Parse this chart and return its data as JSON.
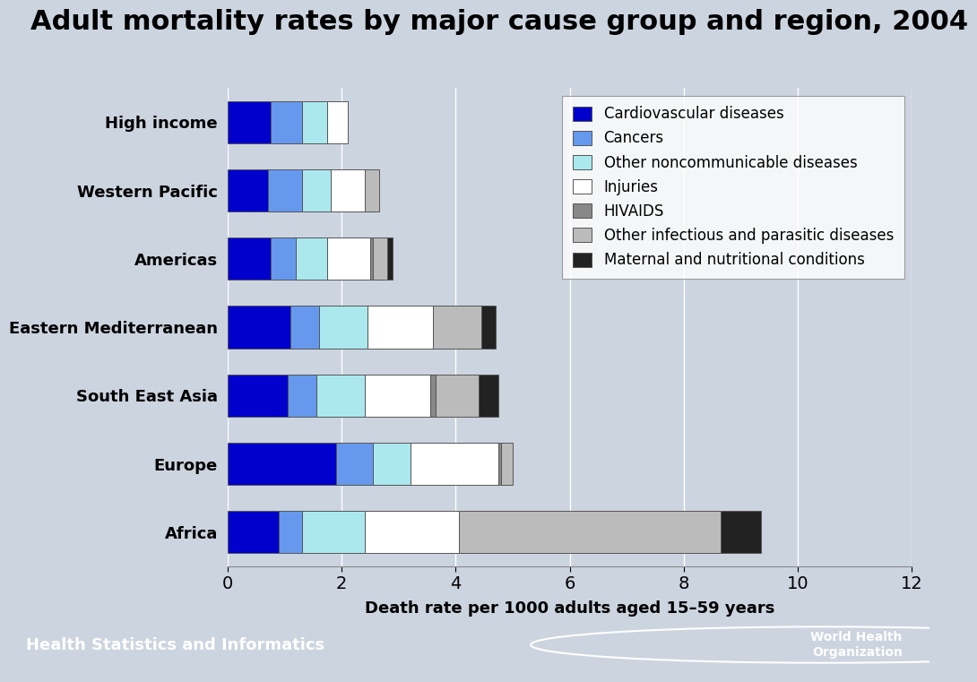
{
  "title": "Adult mortality rates by major cause group and region, 2004",
  "xlabel": "Death rate per 1000 adults aged 15–59 years",
  "regions": [
    "High income",
    "Western Pacific",
    "Americas",
    "Eastern Mediterranean",
    "South East Asia",
    "Europe",
    "Africa"
  ],
  "categories": [
    "Cardiovascular diseases",
    "Cancers",
    "Other noncommunicable diseases",
    "Injuries",
    "HIVAIDS",
    "Other infectious and parasitic diseases",
    "Maternal and nutritional conditions"
  ],
  "colors": [
    "#0000cc",
    "#6699ee",
    "#aae8ee",
    "#ffffff",
    "#888888",
    "#bbbbbb",
    "#222222"
  ],
  "bar_edgecolor": "#555555",
  "data": {
    "High income": [
      0.75,
      0.55,
      0.45,
      0.35,
      0.0,
      0.0,
      0.0
    ],
    "Western Pacific": [
      0.7,
      0.6,
      0.5,
      0.6,
      0.0,
      0.25,
      0.0
    ],
    "Americas": [
      0.75,
      0.45,
      0.55,
      0.75,
      0.05,
      0.25,
      0.1
    ],
    "Eastern Mediterranean": [
      1.1,
      0.5,
      0.85,
      1.15,
      0.0,
      0.85,
      0.25
    ],
    "South East Asia": [
      1.05,
      0.5,
      0.85,
      1.15,
      0.1,
      0.75,
      0.35
    ],
    "Europe": [
      1.9,
      0.65,
      0.65,
      1.55,
      0.05,
      0.2,
      0.0
    ],
    "Africa": [
      0.9,
      0.4,
      1.1,
      1.65,
      0.0,
      4.6,
      0.7
    ]
  },
  "xlim": [
    0,
    12
  ],
  "xticks": [
    0,
    2,
    4,
    6,
    8,
    10,
    12
  ],
  "footer_color": "#5599bb",
  "footer_text": "Health Statistics and Informatics",
  "footer_right": "World Health\nOrganization",
  "bg_color": "#ccd4e0",
  "plot_bg_color": "#ccd4e0",
  "title_fontsize": 22,
  "axis_label_fontsize": 13,
  "tick_fontsize": 14,
  "ytick_fontsize": 13,
  "legend_fontsize": 12,
  "footer_fontsize": 13
}
